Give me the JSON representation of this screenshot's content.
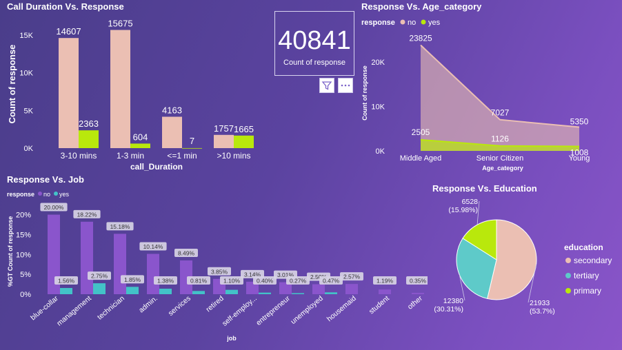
{
  "card": {
    "value": "40841",
    "label": "Count of response"
  },
  "colors": {
    "no": "#ebbfb3",
    "yes": "#b9e80c",
    "job_no": "#8a55cc",
    "job_yes": "#43c2c8",
    "edu_secondary": "#ebbfb3",
    "edu_tertiary": "#5ecac9",
    "edu_primary": "#b9e80c"
  },
  "chart_data": [
    {
      "id": "duration",
      "type": "bar",
      "title": "Call Duration Vs. Response",
      "xlabel": "call_Duration",
      "ylabel": "Count of response",
      "ylim": [
        0,
        17000
      ],
      "yticks": [
        {
          "v": 0,
          "label": "0K"
        },
        {
          "v": 5000,
          "label": "5K"
        },
        {
          "v": 10000,
          "label": "10K"
        },
        {
          "v": 15000,
          "label": "15K"
        }
      ],
      "categories": [
        "3-10 mins",
        "1-3 min",
        "<=1 min",
        ">10 mins"
      ],
      "series": [
        {
          "name": "no",
          "values": [
            14607,
            15675,
            4163,
            1757
          ],
          "labels": [
            "14607",
            "15675",
            "4163",
            "1757"
          ]
        },
        {
          "name": "yes",
          "values": [
            2363,
            604,
            7,
            1665
          ],
          "labels": [
            "2363",
            "604",
            "7",
            "1665"
          ]
        }
      ]
    },
    {
      "id": "age",
      "type": "area",
      "title": "Response Vs. Age_category",
      "legend_title": "response",
      "legend_position": "top-left",
      "xlabel": "Age_category",
      "ylabel": "Count of response",
      "ylim": [
        0,
        27000
      ],
      "yticks": [
        {
          "v": 0,
          "label": "0K"
        },
        {
          "v": 10000,
          "label": "10K"
        },
        {
          "v": 20000,
          "label": "20K"
        }
      ],
      "categories": [
        "Middle Aged",
        "Senior Citizen",
        "Young"
      ],
      "series": [
        {
          "name": "no",
          "values": [
            23825,
            7027,
            5350
          ],
          "labels": [
            "23825",
            "7027",
            "5350"
          ]
        },
        {
          "name": "yes",
          "values": [
            2505,
            1126,
            1008
          ],
          "labels": [
            "2505",
            "1126",
            "1008"
          ]
        }
      ]
    },
    {
      "id": "job",
      "type": "bar",
      "title": "Response Vs. Job",
      "legend_title": "response",
      "legend_position": "top-left",
      "xlabel": "job",
      "ylabel": "%GT Count of response",
      "ylim": [
        0,
        22
      ],
      "yticks": [
        {
          "v": 0,
          "label": "0%"
        },
        {
          "v": 5,
          "label": "5%"
        },
        {
          "v": 10,
          "label": "10%"
        },
        {
          "v": 15,
          "label": "15%"
        },
        {
          "v": 20,
          "label": "20%"
        }
      ],
      "categories": [
        "blue-collar",
        "management",
        "technician",
        "admin.",
        "services",
        "retired",
        "self-employ...",
        "entrepreneur",
        "unemployed",
        "housemaid",
        "student",
        "other"
      ],
      "series": [
        {
          "name": "no",
          "values": [
            20.0,
            18.22,
            15.18,
            10.14,
            8.49,
            3.85,
            3.14,
            3.01,
            2.5,
            2.57,
            1.19,
            0.35
          ],
          "labels": [
            "20.00%",
            "18.22%",
            "15.18%",
            "10.14%",
            "8.49%",
            "3.85%",
            "3.14%",
            "3.01%",
            "2.50%",
            "2.57%",
            "1.19%",
            "0.35%"
          ]
        },
        {
          "name": "yes",
          "values": [
            1.56,
            2.75,
            1.85,
            1.38,
            0.81,
            1.1,
            0.4,
            0.27,
            0.47,
            0.0,
            0.0,
            0.0
          ],
          "labels": [
            "1.56%",
            "2.75%",
            "1.85%",
            "1.38%",
            "0.81%",
            "1.10%",
            "0.40%",
            "0.27%",
            "0.47%",
            "",
            "",
            ""
          ]
        }
      ]
    },
    {
      "id": "education",
      "type": "pie",
      "title": "Response Vs. Education",
      "legend_title": "education",
      "legend_position": "right",
      "slices": [
        {
          "name": "secondary",
          "value": 21933,
          "label1": "21933",
          "label2": "(53.7%)"
        },
        {
          "name": "tertiary",
          "value": 12380,
          "label1": "12380",
          "label2": "(30.31%)"
        },
        {
          "name": "primary",
          "value": 6528,
          "label1": "6528",
          "label2": "(15.98%)"
        }
      ]
    }
  ]
}
